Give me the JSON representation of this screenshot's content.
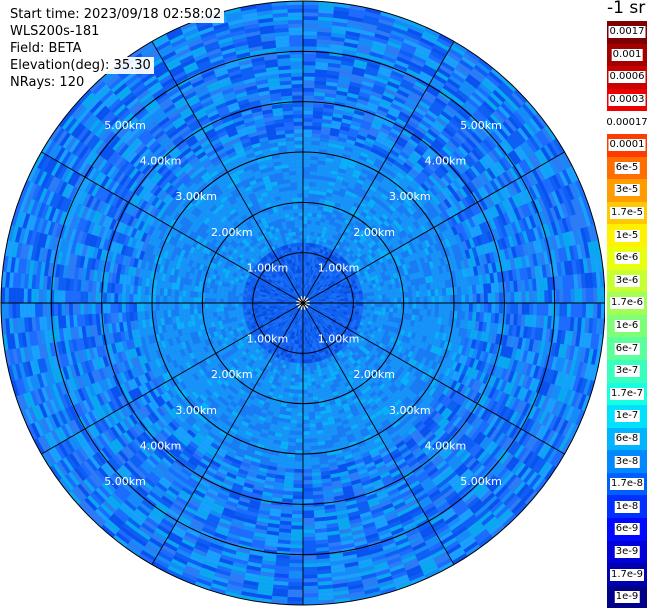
{
  "info": {
    "start_time": "Start time: 2023/09/18 02:58:02",
    "instrument": "WLS200s-181",
    "field": "Field: BETA",
    "elevation": "Elevation(deg): 35.30",
    "nrays": "NRays: 120"
  },
  "colorbar": {
    "title": "-1 sr",
    "entries": [
      {
        "label": "0.0017",
        "color": "#7f0000"
      },
      {
        "label": "0.001",
        "color": "#a50000"
      },
      {
        "label": "0.0006",
        "color": "#c80000"
      },
      {
        "label": "0.0003",
        "color": "#ec0000"
      },
      {
        "label": "0.00017",
        "color": "#ffffff"
      },
      {
        "label": "0.0001",
        "color": "#ff3c00"
      },
      {
        "label": "6e-5",
        "color": "#ff6e00"
      },
      {
        "label": "3e-5",
        "color": "#ff9c00"
      },
      {
        "label": "1.7e-5",
        "color": "#ffc800"
      },
      {
        "label": "1e-5",
        "color": "#fff200"
      },
      {
        "label": "6e-6",
        "color": "#e9ff10"
      },
      {
        "label": "3e-6",
        "color": "#c6ff32"
      },
      {
        "label": "1.7e-6",
        "color": "#a2ff56"
      },
      {
        "label": "1e-6",
        "color": "#7fff78"
      },
      {
        "label": "6e-7",
        "color": "#5cff9a"
      },
      {
        "label": "3e-7",
        "color": "#39ffbe"
      },
      {
        "label": "1.7e-7",
        "color": "#16ffe0"
      },
      {
        "label": "1e-7",
        "color": "#00e0ff"
      },
      {
        "label": "6e-8",
        "color": "#00b4ff"
      },
      {
        "label": "3e-8",
        "color": "#0088ff"
      },
      {
        "label": "1.7e-8",
        "color": "#0060ff"
      },
      {
        "label": "1e-8",
        "color": "#0030ff"
      },
      {
        "label": "6e-9",
        "color": "#0008ff"
      },
      {
        "label": "3e-9",
        "color": "#0000d8"
      },
      {
        "label": "1.7e-9",
        "color": "#0000b0"
      },
      {
        "label": "1e-9",
        "color": "#000088"
      }
    ]
  },
  "chart_data": {
    "type": "heatmap",
    "projection": "polar PPI",
    "rays": 120,
    "range_rings_km": [
      1.0,
      2.0,
      3.0,
      4.0,
      5.0
    ],
    "range_ring_labels": [
      "1.00km",
      "2.00km",
      "3.00km",
      "4.00km",
      "5.00km"
    ],
    "max_range_km": 6.0,
    "azimuth_spokes_deg": [
      0,
      30,
      60,
      90,
      120,
      150,
      180,
      210,
      240,
      270,
      300,
      330
    ],
    "dominant_value_range": [
      3e-08,
      1e-07
    ],
    "color_scale": "log"
  }
}
